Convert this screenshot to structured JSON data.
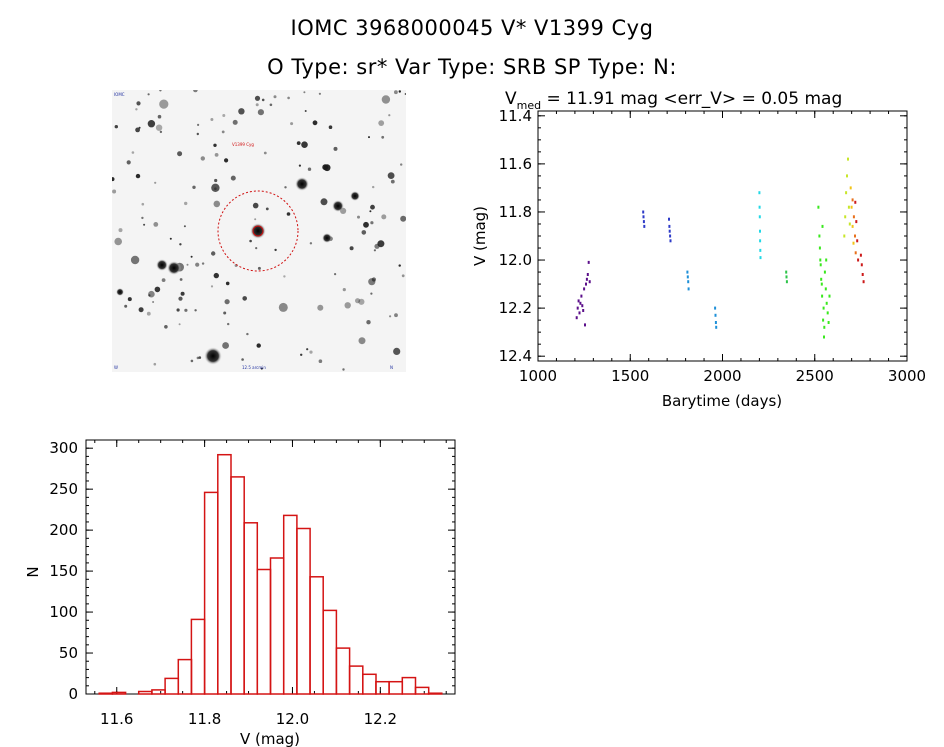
{
  "header": {
    "title_line1": "IOMC 3968000045    V* V1399 Cyg",
    "title_line2": "O Type: sr*  Var Type: SRB  SP Type: N:"
  },
  "lightcurve_title": {
    "v": "V",
    "sub": "med",
    "rest": " = 11.91 mag <err_V> = 0.05 mag"
  },
  "chart_data": [
    {
      "type": "scatter",
      "xlabel": "Barytime (days)",
      "ylabel": "V (mag)",
      "xlim": [
        1000,
        3000
      ],
      "ylim": [
        12.42,
        11.38
      ],
      "y_inverted": true,
      "x_ticks": [
        1000,
        1500,
        2000,
        2500,
        3000
      ],
      "y_ticks": [
        "11.4",
        "11.6",
        "11.8",
        "12.0",
        "12.2",
        "12.4"
      ],
      "series": [
        {
          "color": "#5b0f8a",
          "points": [
            [
              1210,
              12.24
            ],
            [
              1215,
              12.2
            ],
            [
              1220,
              12.17
            ],
            [
              1225,
              12.22
            ],
            [
              1230,
              12.18
            ],
            [
              1235,
              12.15
            ],
            [
              1240,
              12.19
            ],
            [
              1245,
              12.21
            ],
            [
              1250,
              12.12
            ],
            [
              1255,
              12.27
            ],
            [
              1260,
              12.1
            ],
            [
              1265,
              12.08
            ],
            [
              1270,
              12.06
            ],
            [
              1275,
              12.01
            ],
            [
              1280,
              12.09
            ]
          ]
        },
        {
          "color": "#2e3bc8",
          "points": [
            [
              1570,
              11.8
            ],
            [
              1572,
              11.82
            ],
            [
              1574,
              11.84
            ],
            [
              1576,
              11.86
            ],
            [
              1710,
              11.83
            ],
            [
              1712,
              11.86
            ],
            [
              1714,
              11.88
            ],
            [
              1716,
              11.9
            ],
            [
              1718,
              11.92
            ]
          ]
        },
        {
          "color": "#1e90d8",
          "points": [
            [
              1810,
              12.05
            ],
            [
              1812,
              12.07
            ],
            [
              1814,
              12.09
            ],
            [
              1816,
              12.12
            ],
            [
              1960,
              12.2
            ],
            [
              1962,
              12.23
            ],
            [
              1964,
              12.26
            ],
            [
              1966,
              12.28
            ]
          ]
        },
        {
          "color": "#22d8e6",
          "points": [
            [
              2200,
              11.72
            ],
            [
              2201,
              11.78
            ],
            [
              2202,
              11.82
            ],
            [
              2203,
              11.88
            ],
            [
              2204,
              11.92
            ],
            [
              2205,
              11.96
            ],
            [
              2206,
              11.99
            ]
          ]
        },
        {
          "color": "#2ec44a",
          "points": [
            [
              2345,
              12.05
            ],
            [
              2347,
              12.07
            ],
            [
              2349,
              12.09
            ]
          ]
        },
        {
          "color": "#3ae81e",
          "points": [
            [
              2520,
              11.78
            ],
            [
              2525,
              11.9
            ],
            [
              2530,
              12.0
            ],
            [
              2535,
              12.08
            ],
            [
              2540,
              12.15
            ],
            [
              2545,
              12.25
            ],
            [
              2550,
              12.32
            ],
            [
              2528,
              11.95
            ],
            [
              2538,
              12.1
            ],
            [
              2548,
              12.2
            ],
            [
              2555,
              12.05
            ],
            [
              2560,
              12.12
            ],
            [
              2565,
              12.18
            ],
            [
              2570,
              12.22
            ],
            [
              2575,
              12.26
            ],
            [
              2580,
              12.15
            ],
            [
              2532,
              12.02
            ],
            [
              2542,
              11.86
            ],
            [
              2552,
              12.28
            ],
            [
              2562,
              12.0
            ]
          ]
        },
        {
          "color": "#c8e62a",
          "points": [
            [
              2660,
              11.9
            ],
            [
              2665,
              11.82
            ],
            [
              2670,
              11.72
            ],
            [
              2675,
              11.65
            ],
            [
              2680,
              11.58
            ],
            [
              2685,
              11.78
            ],
            [
              2690,
              11.85
            ]
          ]
        },
        {
          "color": "#f2c418",
          "points": [
            [
              2695,
              11.7
            ],
            [
              2700,
              11.78
            ],
            [
              2705,
              11.86
            ],
            [
              2710,
              11.93
            ]
          ]
        },
        {
          "color": "#e8701c",
          "points": [
            [
              2705,
              11.75
            ],
            [
              2712,
              11.82
            ],
            [
              2718,
              11.9
            ],
            [
              2722,
              11.97
            ]
          ]
        },
        {
          "color": "#cc1a1a",
          "points": [
            [
              2720,
              11.76
            ],
            [
              2725,
              11.84
            ],
            [
              2730,
              11.92
            ],
            [
              2735,
              12.0
            ],
            [
              2750,
              11.98
            ],
            [
              2755,
              12.02
            ],
            [
              2760,
              12.06
            ],
            [
              2765,
              12.09
            ]
          ]
        }
      ]
    },
    {
      "type": "bar",
      "subtype": "histogram",
      "xlabel": "V (mag)",
      "ylabel": "N",
      "xlim": [
        11.53,
        12.37
      ],
      "ylim": [
        0,
        310
      ],
      "x_ticks": [
        "11.6",
        "11.8",
        "12.0",
        "12.2"
      ],
      "y_ticks": [
        "0",
        "50",
        "100",
        "150",
        "200",
        "250",
        "300"
      ],
      "bin_edges": [
        11.56,
        11.59,
        11.62,
        11.65,
        11.68,
        11.71,
        11.74,
        11.77,
        11.8,
        11.83,
        11.86,
        11.89,
        11.92,
        11.95,
        11.98,
        12.01,
        12.04,
        12.07,
        12.1,
        12.13,
        12.16,
        12.19,
        12.22,
        12.25,
        12.28,
        12.31,
        12.34
      ],
      "values": [
        1,
        2,
        0,
        3,
        5,
        19,
        42,
        91,
        246,
        292,
        265,
        209,
        152,
        166,
        218,
        202,
        143,
        102,
        56,
        34,
        24,
        15,
        15,
        20,
        8,
        1
      ]
    }
  ]
}
